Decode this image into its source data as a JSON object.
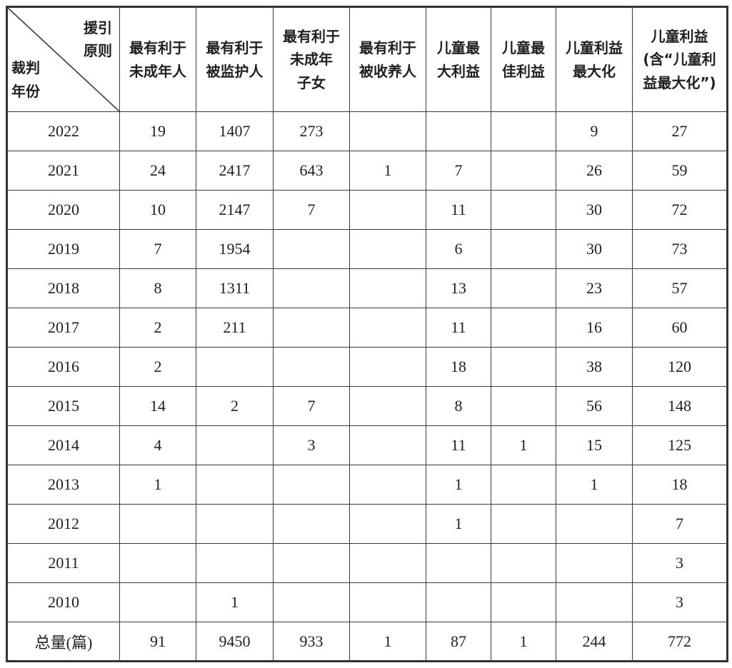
{
  "colors": {
    "background": "#ffffff",
    "border": "#3b3b3b",
    "text": "#1f1f1f"
  },
  "table": {
    "corner": {
      "top_label": "援引\n原则",
      "bottom_label": "裁判\n年份"
    },
    "column_headers": [
      "最有利于\n未成年人",
      "最有利于\n被监护人",
      "最有利于\n未成年\n子女",
      "最有利于\n被收养人",
      "儿童最\n大利益",
      "儿童最\n佳利益",
      "儿童利益\n最大化",
      "儿童利益\n(含“儿童利\n益最大化”)"
    ],
    "rows": [
      {
        "label": "2022",
        "values": [
          "19",
          "1407",
          "273",
          "",
          "",
          "",
          "9",
          "27"
        ]
      },
      {
        "label": "2021",
        "values": [
          "24",
          "2417",
          "643",
          "1",
          "7",
          "",
          "26",
          "59"
        ]
      },
      {
        "label": "2020",
        "values": [
          "10",
          "2147",
          "7",
          "",
          "11",
          "",
          "30",
          "72"
        ]
      },
      {
        "label": "2019",
        "values": [
          "7",
          "1954",
          "",
          "",
          "6",
          "",
          "30",
          "73"
        ]
      },
      {
        "label": "2018",
        "values": [
          "8",
          "1311",
          "",
          "",
          "13",
          "",
          "23",
          "57"
        ]
      },
      {
        "label": "2017",
        "values": [
          "2",
          "211",
          "",
          "",
          "11",
          "",
          "16",
          "60"
        ]
      },
      {
        "label": "2016",
        "values": [
          "2",
          "",
          "",
          "",
          "18",
          "",
          "38",
          "120"
        ]
      },
      {
        "label": "2015",
        "values": [
          "14",
          "2",
          "7",
          "",
          "8",
          "",
          "56",
          "148"
        ]
      },
      {
        "label": "2014",
        "values": [
          "4",
          "",
          "3",
          "",
          "11",
          "1",
          "15",
          "125"
        ]
      },
      {
        "label": "2013",
        "values": [
          "1",
          "",
          "",
          "",
          "1",
          "",
          "1",
          "18"
        ]
      },
      {
        "label": "2012",
        "values": [
          "",
          "",
          "",
          "",
          "1",
          "",
          "",
          "7"
        ]
      },
      {
        "label": "2011",
        "values": [
          "",
          "",
          "",
          "",
          "",
          "",
          "",
          "3"
        ]
      },
      {
        "label": "2010",
        "values": [
          "",
          "1",
          "",
          "",
          "",
          "",
          "",
          "3"
        ]
      },
      {
        "label": "总量(篇)",
        "values": [
          "91",
          "9450",
          "933",
          "1",
          "87",
          "1",
          "244",
          "772"
        ]
      }
    ]
  }
}
